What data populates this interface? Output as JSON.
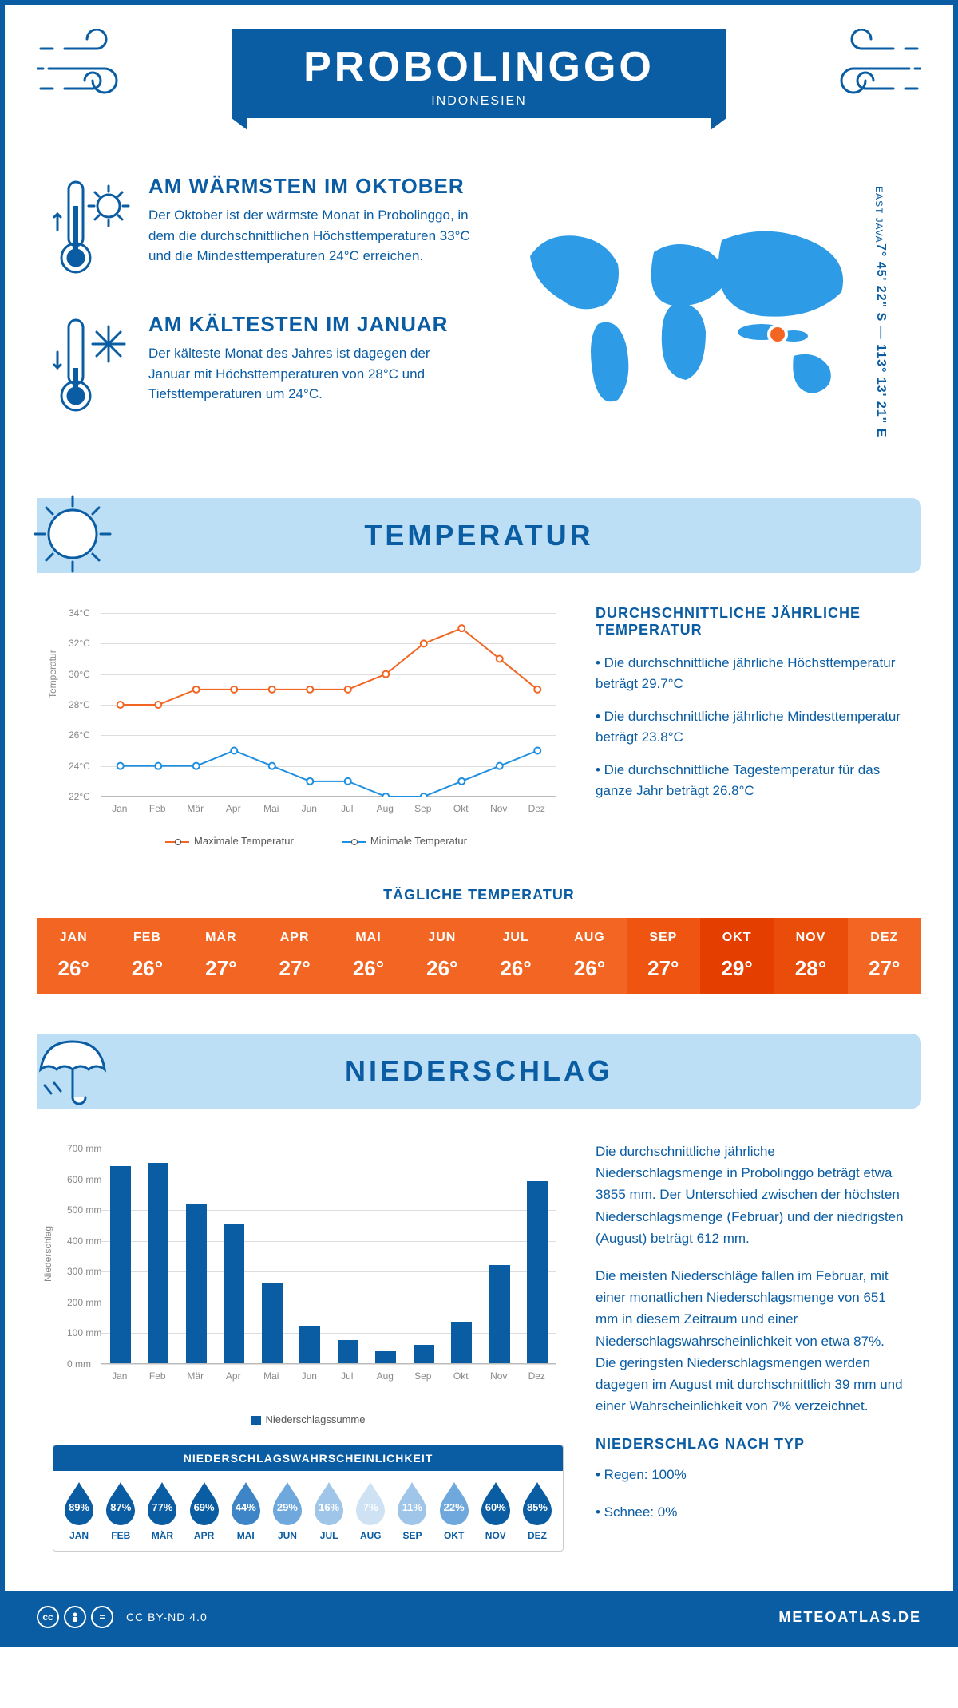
{
  "header": {
    "city": "PROBOLINGGO",
    "country": "INDONESIEN",
    "region": "EAST JAVA",
    "coords": "7° 45' 22\" S — 113° 13' 21\" E"
  },
  "intro": {
    "warm": {
      "title": "AM WÄRMSTEN IM OKTOBER",
      "text": "Der Oktober ist der wärmste Monat in Probolinggo, in dem die durchschnittlichen Höchsttemperaturen 33°C und die Mindesttemperaturen 24°C erreichen."
    },
    "cold": {
      "title": "AM KÄLTESTEN IM JANUAR",
      "text": "Der kälteste Monat des Jahres ist dagegen der Januar mit Höchsttemperaturen von 28°C und Tiefsttemperaturen um 24°C."
    }
  },
  "sections": {
    "temperature": "TEMPERATUR",
    "precipitation": "NIEDERSCHLAG"
  },
  "temp_chart": {
    "type": "line",
    "axis_label": "Temperatur",
    "months": [
      "Jan",
      "Feb",
      "Mär",
      "Apr",
      "Mai",
      "Jun",
      "Jul",
      "Aug",
      "Sep",
      "Okt",
      "Nov",
      "Dez"
    ],
    "ylim": [
      22,
      34
    ],
    "ytick_step": 2,
    "yticks": [
      "22°C",
      "24°C",
      "26°C",
      "28°C",
      "30°C",
      "32°C",
      "34°C"
    ],
    "series": [
      {
        "name": "Maximale Temperatur",
        "color": "#f26522",
        "values": [
          28,
          28,
          29,
          29,
          29,
          29,
          29,
          30,
          32,
          33,
          31,
          29
        ]
      },
      {
        "name": "Minimale Temperatur",
        "color": "#1e8fe0",
        "values": [
          24,
          24,
          24,
          25,
          24,
          23,
          23,
          22,
          22,
          23,
          24,
          25
        ]
      }
    ],
    "grid_color": "#dddddd",
    "marker": "circle"
  },
  "temp_text": {
    "heading": "DURCHSCHNITTLICHE JÄHRLICHE TEMPERATUR",
    "lines": [
      "• Die durchschnittliche jährliche Höchsttemperatur beträgt 29.7°C",
      "• Die durchschnittliche jährliche Mindesttemperatur beträgt 23.8°C",
      "• Die durchschnittliche Tagestemperatur für das ganze Jahr beträgt 26.8°C"
    ]
  },
  "daily_temp": {
    "heading": "TÄGLICHE TEMPERATUR",
    "months": [
      "JAN",
      "FEB",
      "MÄR",
      "APR",
      "MAI",
      "JUN",
      "JUL",
      "AUG",
      "SEP",
      "OKT",
      "NOV",
      "DEZ"
    ],
    "values": [
      "26°",
      "26°",
      "27°",
      "27°",
      "26°",
      "26°",
      "26°",
      "26°",
      "27°",
      "29°",
      "28°",
      "27°"
    ],
    "colors": [
      "#f26522",
      "#f26522",
      "#f26522",
      "#f26522",
      "#f26522",
      "#f26522",
      "#f26522",
      "#f26522",
      "#ef5411",
      "#e43e00",
      "#ea4d0a",
      "#f26522"
    ]
  },
  "precip_chart": {
    "type": "bar",
    "axis_label": "Niederschlag",
    "legend": "Niederschlagssumme",
    "months": [
      "Jan",
      "Feb",
      "Mär",
      "Apr",
      "Mai",
      "Jun",
      "Jul",
      "Aug",
      "Sep",
      "Okt",
      "Nov",
      "Dez"
    ],
    "values": [
      640,
      651,
      515,
      450,
      260,
      120,
      75,
      39,
      60,
      135,
      320,
      590
    ],
    "ylim": [
      0,
      700
    ],
    "ytick_step": 100,
    "yticks": [
      "0 mm",
      "100 mm",
      "200 mm",
      "300 mm",
      "400 mm",
      "500 mm",
      "600 mm",
      "700 mm"
    ],
    "bar_color": "#0a5ca3",
    "grid_color": "#dddddd"
  },
  "precip_text": {
    "para1": "Die durchschnittliche jährliche Niederschlagsmenge in Probolinggo beträgt etwa 3855 mm. Der Unterschied zwischen der höchsten Niederschlagsmenge (Februar) und der niedrigsten (August) beträgt 612 mm.",
    "para2": "Die meisten Niederschläge fallen im Februar, mit einer monatlichen Niederschlagsmenge von 651 mm in diesem Zeitraum und einer Niederschlagswahrscheinlichkeit von etwa 87%. Die geringsten Niederschlagsmengen werden dagegen im August mit durchschnittlich 39 mm und einer Wahrscheinlichkeit von 7% verzeichnet.",
    "type_heading": "NIEDERSCHLAG NACH TYP",
    "type_lines": [
      "• Regen: 100%",
      "• Schnee: 0%"
    ]
  },
  "probability": {
    "title": "NIEDERSCHLAGSWAHRSCHEINLICHKEIT",
    "months": [
      "JAN",
      "FEB",
      "MÄR",
      "APR",
      "MAI",
      "JUN",
      "JUL",
      "AUG",
      "SEP",
      "OKT",
      "NOV",
      "DEZ"
    ],
    "values": [
      "89%",
      "87%",
      "77%",
      "69%",
      "44%",
      "29%",
      "16%",
      "7%",
      "11%",
      "22%",
      "60%",
      "85%"
    ],
    "colors": [
      "#0a5ca3",
      "#0a5ca3",
      "#0a5ca3",
      "#0a5ca3",
      "#3d85c6",
      "#6fa8dc",
      "#9fc5e8",
      "#cfe2f3",
      "#9fc5e8",
      "#6fa8dc",
      "#0a5ca3",
      "#0a5ca3"
    ]
  },
  "footer": {
    "license": "CC BY-ND 4.0",
    "credit": "METEOATLAS.DE"
  },
  "colors": {
    "brand": "#0a5ca3",
    "light_blue": "#bcdff6",
    "map_blue": "#2e9be6",
    "marker_orange": "#f26522"
  }
}
